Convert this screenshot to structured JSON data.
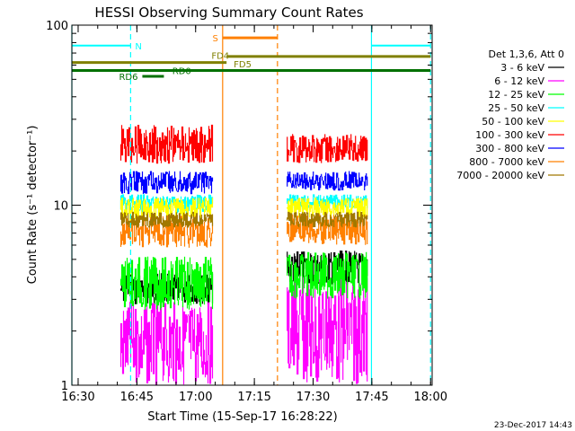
{
  "chart_data": {
    "type": "line",
    "title": "HESSI Observing Summary Count Rates",
    "xlabel": "Start Time (15-Sep-17 16:28:22)",
    "ylabel": "Count Rate (s⁻¹ detector⁻¹)",
    "x_unit": "minutes since 16:28:22",
    "xlim": [
      0,
      92
    ],
    "ylim": [
      1,
      100
    ],
    "yscale": "log",
    "x_ticks": [
      {
        "t": 1.6,
        "label": "16:30"
      },
      {
        "t": 16.6,
        "label": "16:45"
      },
      {
        "t": 31.6,
        "label": "17:00"
      },
      {
        "t": 46.6,
        "label": "17:15"
      },
      {
        "t": 61.6,
        "label": "17:30"
      },
      {
        "t": 76.6,
        "label": "17:45"
      },
      {
        "t": 91.6,
        "label": "18:00"
      }
    ],
    "y_ticks": [
      {
        "v": 1,
        "label": "1"
      },
      {
        "v": 10,
        "label": "10"
      },
      {
        "v": 100,
        "label": "100"
      }
    ],
    "legend_title": "Det 1,3,6, Att 0",
    "legend_position": "right",
    "series": [
      {
        "name": "3 - 6 keV",
        "color": "#000000",
        "segments": [
          {
            "t0": 12.5,
            "t1": 36.0,
            "low": 2.8,
            "high": 4.2
          },
          {
            "t0": 55.0,
            "t1": 75.5,
            "low": 3.6,
            "high": 5.6
          }
        ]
      },
      {
        "name": "6 - 12 keV",
        "color": "#ff00ff",
        "segments": [
          {
            "t0": 12.5,
            "t1": 36.0,
            "low": 1.0,
            "high": 2.9
          },
          {
            "t0": 55.0,
            "t1": 75.5,
            "low": 1.0,
            "high": 4.0
          }
        ]
      },
      {
        "name": "12 - 25 keV",
        "color": "#00ff00",
        "segments": [
          {
            "t0": 12.5,
            "t1": 36.0,
            "low": 2.6,
            "high": 5.2
          },
          {
            "t0": 55.0,
            "t1": 75.5,
            "low": 3.0,
            "high": 5.5
          }
        ]
      },
      {
        "name": "25 - 50 keV",
        "color": "#00ffff",
        "segments": [
          {
            "t0": 12.5,
            "t1": 36.0,
            "low": 9.0,
            "high": 11.5
          },
          {
            "t0": 55.0,
            "t1": 75.5,
            "low": 9.5,
            "high": 11.5
          }
        ]
      },
      {
        "name": "50 - 100 keV",
        "color": "#ffff00",
        "segments": [
          {
            "t0": 12.5,
            "t1": 36.0,
            "low": 8.2,
            "high": 11.0
          },
          {
            "t0": 55.0,
            "t1": 75.5,
            "low": 8.5,
            "high": 11.0
          }
        ]
      },
      {
        "name": "100 - 300 keV",
        "color": "#ff0000",
        "segments": [
          {
            "t0": 12.5,
            "t1": 36.0,
            "low": 17.0,
            "high": 28.0
          },
          {
            "t0": 55.0,
            "t1": 75.5,
            "low": 17.0,
            "high": 25.0
          }
        ]
      },
      {
        "name": "300 - 800 keV",
        "color": "#0000ff",
        "segments": [
          {
            "t0": 12.5,
            "t1": 36.0,
            "low": 11.5,
            "high": 15.5
          },
          {
            "t0": 55.0,
            "t1": 75.5,
            "low": 12.0,
            "high": 15.5
          }
        ]
      },
      {
        "name": "800 - 7000 keV",
        "color": "#ff8000",
        "segments": [
          {
            "t0": 12.5,
            "t1": 36.0,
            "low": 5.8,
            "high": 8.8
          },
          {
            "t0": 55.0,
            "t1": 75.5,
            "low": 6.0,
            "high": 9.0
          }
        ]
      },
      {
        "name": "7000 - 20000 keV",
        "color": "#a07800",
        "segments": [
          {
            "t0": 12.5,
            "t1": 36.0,
            "low": 7.5,
            "high": 9.2
          },
          {
            "t0": 55.0,
            "t1": 75.5,
            "low": 7.5,
            "high": 9.2
          }
        ]
      }
    ],
    "flag_bars": [
      {
        "label": "N",
        "color": "#00ffff",
        "y": 77,
        "thickness": 2,
        "t0": 0,
        "t1": 15.0,
        "label_at": "after"
      },
      {
        "label": "",
        "color": "#00ffff",
        "y": 77,
        "thickness": 2,
        "t0": 76.5,
        "t1": 91.6,
        "label_at": "none"
      },
      {
        "label": "S",
        "color": "#ff8000",
        "y": 85,
        "thickness": 3,
        "t0": 38.5,
        "t1": 52.5,
        "label_at": "before"
      },
      {
        "label": "FD4",
        "color": "#808000",
        "y": 62,
        "thickness": 3,
        "t0": 0,
        "t1": 39.5,
        "label_at": "above_end"
      },
      {
        "label": "FD5",
        "color": "#808000",
        "y": 67,
        "thickness": 3,
        "t0": 39.5,
        "t1": 91.6,
        "label_at": "below_start"
      },
      {
        "label": "",
        "color": "#007000",
        "y": 56,
        "thickness": 3,
        "t0": 0,
        "t1": 91.6,
        "label_at": "none"
      },
      {
        "label": "RD0",
        "color": "#007000",
        "y": 56,
        "thickness": 3,
        "t0": 19.0,
        "t1": 24.5,
        "label_at": "after"
      },
      {
        "label": "RD6",
        "color": "#007000",
        "y": 52,
        "thickness": 3,
        "t0": 18.0,
        "t1": 23.5,
        "label_at": "before"
      }
    ],
    "vlines": [
      {
        "t": 0.0,
        "color": "#00ffff",
        "style": "solid"
      },
      {
        "t": 15.0,
        "color": "#00ffff",
        "style": "dashed"
      },
      {
        "t": 38.5,
        "color": "#ff8000",
        "style": "solid"
      },
      {
        "t": 52.5,
        "color": "#ff8000",
        "style": "dashed"
      },
      {
        "t": 76.5,
        "color": "#00ffff",
        "style": "solid"
      },
      {
        "t": 91.6,
        "color": "#00ffff",
        "style": "dashed"
      }
    ],
    "timestamp": "23-Dec-2017 14:43"
  }
}
